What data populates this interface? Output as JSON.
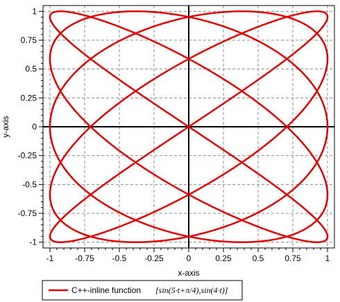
{
  "chart_data": {
    "type": "line",
    "title": "",
    "xlabel": "x-axis",
    "ylabel": "y-axis",
    "xlim": [
      -1.05,
      1.05
    ],
    "ylim": [
      -1.05,
      1.05
    ],
    "x_ticks": [
      -1,
      -0.75,
      -0.5,
      -0.25,
      0,
      0.25,
      0.5,
      0.75,
      1
    ],
    "y_ticks": [
      -1,
      -0.75,
      -0.5,
      -0.25,
      0,
      0.25,
      0.5,
      0.75,
      1
    ],
    "x_tick_labels": [
      "-1",
      "-0.75",
      "-0.5",
      "-0.25",
      "0",
      "0.25",
      "0.5",
      "0.75",
      "1"
    ],
    "y_tick_labels": [
      "-1",
      "-0.75",
      "-0.5",
      "-0.25",
      "0",
      "0.25",
      "0.5",
      "0.75",
      "1"
    ],
    "grid": true,
    "legend_position": "bottom-left",
    "series": [
      {
        "name": "C++-inline function",
        "formula_display": "[sin(5·t+π/4),sin(4·t)]",
        "x_expr": "sin(5*t+pi/4)",
        "y_expr": "sin(4*t)",
        "t_range": [
          0,
          6.283185307
        ],
        "color": "#e00000"
      }
    ]
  }
}
